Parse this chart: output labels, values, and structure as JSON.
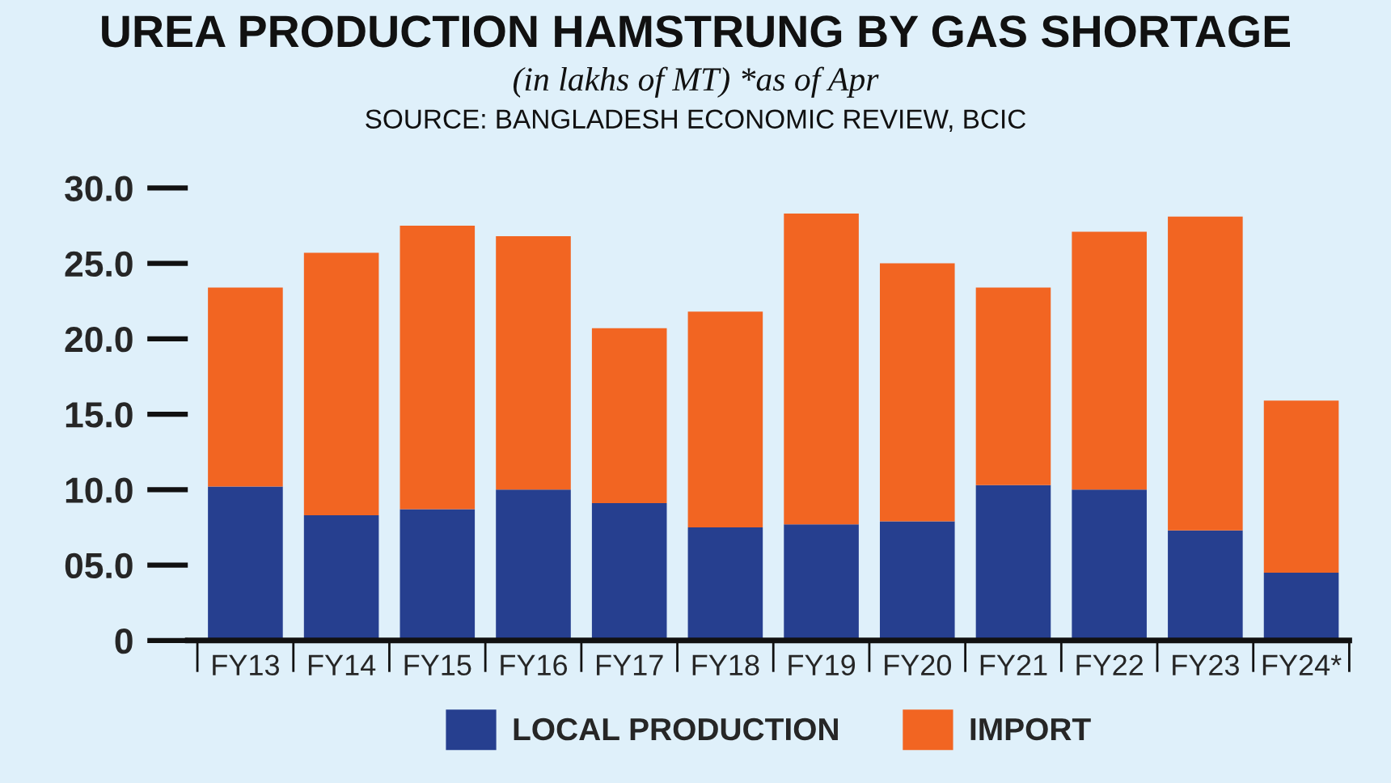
{
  "chart_data": {
    "type": "bar",
    "title": "UREA PRODUCTION HAMSTRUNG BY GAS SHORTAGE",
    "subtitle": "(in lakhs of MT) *as of Apr",
    "annotations": [
      "SOURCE: BANGLADESH ECONOMIC REVIEW, BCIC"
    ],
    "categories": [
      "FY13",
      "FY14",
      "FY15",
      "FY16",
      "FY17",
      "FY18",
      "FY19",
      "FY20",
      "FY21",
      "FY22",
      "FY23",
      "FY24*"
    ],
    "stacked": true,
    "series": [
      {
        "name": "LOCAL PRODUCTION",
        "color": "#263f8f",
        "values": [
          10.2,
          8.3,
          8.7,
          10.0,
          9.1,
          7.5,
          7.7,
          7.9,
          10.3,
          10.0,
          7.3,
          4.5
        ]
      },
      {
        "name": "IMPORT",
        "color": "#f26522",
        "values": [
          13.2,
          17.4,
          18.8,
          16.8,
          11.6,
          14.3,
          20.6,
          17.1,
          13.1,
          17.1,
          20.8,
          11.4
        ]
      }
    ],
    "ylim": [
      0,
      30
    ],
    "yticks": [
      {
        "value": 0,
        "label": "0"
      },
      {
        "value": 5,
        "label": "05.0"
      },
      {
        "value": 10,
        "label": "10.0"
      },
      {
        "value": 15,
        "label": "15.0"
      },
      {
        "value": 20,
        "label": "20.0"
      },
      {
        "value": 25,
        "label": "25.0"
      },
      {
        "value": 30,
        "label": "30.0"
      }
    ],
    "grid": false,
    "legend": "bottom"
  }
}
